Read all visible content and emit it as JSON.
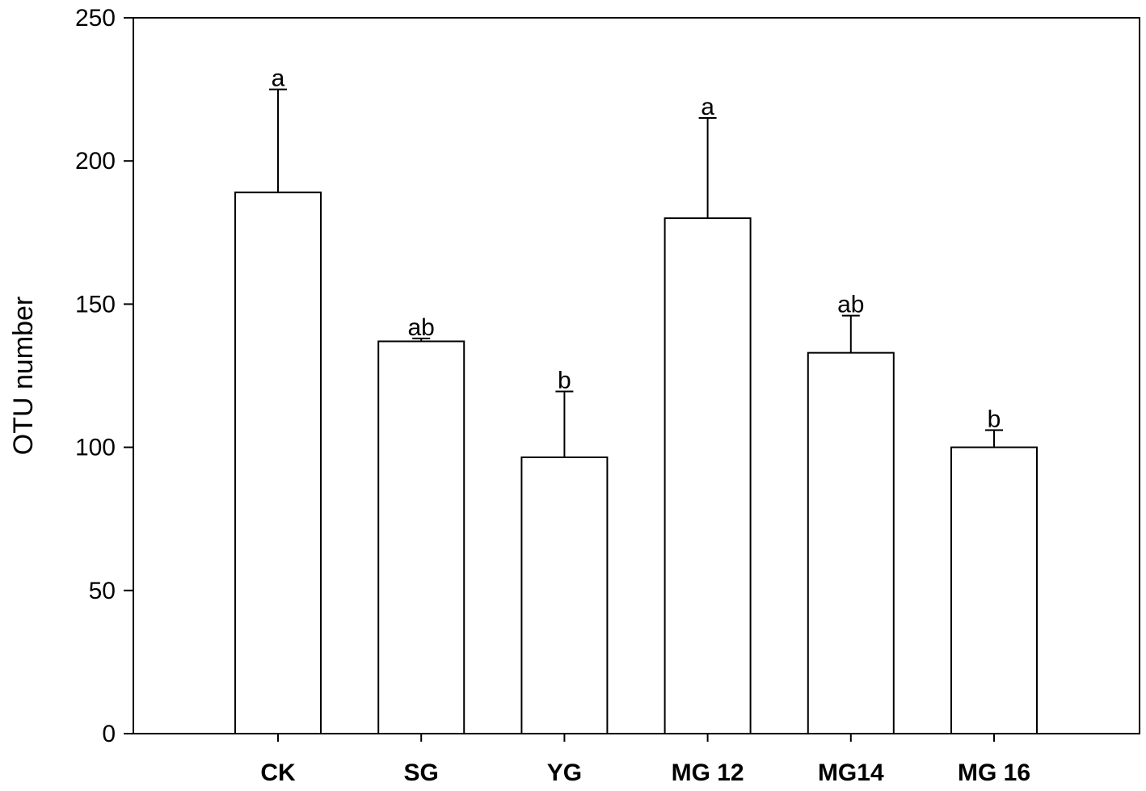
{
  "chart_data": {
    "type": "bar",
    "title": "",
    "xlabel": "",
    "ylabel": "OTU number",
    "ylim": [
      0,
      250
    ],
    "yticks": [
      0,
      50,
      100,
      150,
      200,
      250
    ],
    "categories": [
      "CK",
      "SG",
      "YG",
      "MG 12",
      "MG14",
      "MG 16"
    ],
    "values": [
      189,
      137,
      96.5,
      180,
      133,
      100
    ],
    "error_upper": [
      36,
      1,
      23,
      35,
      13,
      6
    ],
    "significance_labels": [
      "a",
      "ab",
      "b",
      "a",
      "ab",
      "b"
    ],
    "bar_fill": "#ffffff",
    "bar_stroke": "#000000",
    "grid": false,
    "legend": "none"
  }
}
